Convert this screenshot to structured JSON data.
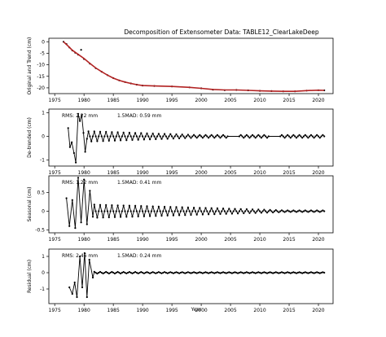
{
  "chart_data": {
    "title": "Decomposition of Extensometer Data: TABLE12_ClearLakeDeep",
    "xlabel": "Year",
    "xlim": [
      1974,
      2022.5
    ],
    "xticks": [
      1975,
      1980,
      1985,
      1990,
      1995,
      2000,
      2005,
      2010,
      2015,
      2020
    ],
    "panels": [
      {
        "type": "line",
        "ylabel": "Original and Trend (cm)",
        "ylim": [
          -22.5,
          1.5
        ],
        "yticks": [
          0,
          -5,
          -10,
          -15,
          -20
        ],
        "note_rms": "",
        "note_mad": "",
        "series": [
          {
            "color": "#000000",
            "style": "points",
            "x": [
              1976.5,
              1977,
              1977.5,
              1978,
              1978.5,
              1979,
              1979.5,
              1980,
              1981,
              1982,
              1983,
              1984,
              1985,
              1986,
              1987,
              1988,
              1989,
              1990,
              1992,
              1995,
              1998,
              2000,
              2002,
              2004,
              2006,
              2008,
              2010,
              2012,
              2014,
              2016,
              2018,
              2020,
              2021
            ],
            "y": [
              0,
              -1,
              -2.5,
              -3.8,
              -4.8,
              -5.6,
              -3.5,
              -7.5,
              -9.5,
              -11.5,
              -13,
              -14.5,
              -15.8,
              -16.8,
              -17.5,
              -18.1,
              -18.6,
              -19,
              -19.2,
              -19.4,
              -19.8,
              -20.2,
              -20.8,
              -21,
              -20.9,
              -21.1,
              -21.3,
              -21.4,
              -21.5,
              -21.5,
              -21.2,
              -21,
              -21.1
            ]
          },
          {
            "color": "#b22222",
            "style": "line",
            "x": [
              1976.5,
              1977,
              1978,
              1979,
              1980,
              1981,
              1982,
              1983,
              1984,
              1985,
              1986,
              1987,
              1988,
              1989,
              1990,
              1992,
              1995,
              1998,
              2000,
              2002,
              2004,
              2006,
              2008,
              2010,
              2012,
              2014,
              2016,
              2018,
              2020,
              2021
            ],
            "y": [
              0,
              -1.2,
              -3.7,
              -5.5,
              -7.3,
              -9.4,
              -11.4,
              -13,
              -14.5,
              -15.8,
              -16.8,
              -17.5,
              -18.1,
              -18.6,
              -19,
              -19.2,
              -19.4,
              -19.8,
              -20.2,
              -20.7,
              -20.9,
              -20.9,
              -21.1,
              -21.3,
              -21.4,
              -21.5,
              -21.5,
              -21.2,
              -21,
              -21.1
            ]
          }
        ]
      },
      {
        "type": "line",
        "ylabel": "De-trended (cm)",
        "ylim": [
          -1.25,
          1.15
        ],
        "yticks": [
          1,
          0,
          -1
        ],
        "note_rms": "RMS: 2.22 mm",
        "note_mad": "1.5MAD: 0.59 mm",
        "start": 1976.5,
        "end": 2021,
        "step": 0.25,
        "period": 1,
        "amp": [
          0.25,
          0.06
        ],
        "amp_decay": 1999,
        "gaps": [
          [
            2004.5,
            2006.5
          ],
          [
            2011.5,
            2013.5
          ]
        ],
        "excursions": {
          "x": [
            1977.3,
            1977.6,
            1977.9,
            1978.3,
            1978.6,
            1979.0,
            1979.3,
            1979.6,
            1979.9,
            1980.2,
            1980.5
          ],
          "y": [
            0.35,
            -0.45,
            -0.25,
            -0.7,
            -1.1,
            0.95,
            0.65,
            0.9,
            0.15,
            -0.65,
            -0.1
          ]
        }
      },
      {
        "type": "line",
        "ylabel": "Seasonal (cm)",
        "ylim": [
          -0.58,
          0.95
        ],
        "yticks": [
          0.5,
          0,
          -0.5
        ],
        "note_rms": "RMS: 1.22 mm",
        "note_mad": "1.5MAD: 0.41 mm",
        "start": 1976.5,
        "end": 2021,
        "step": 0.25,
        "period": 1,
        "amp": [
          0.2,
          0.02
        ],
        "amp_decay": 2015,
        "gaps": [],
        "excursions": {
          "x": [
            1977.0,
            1977.5,
            1978.0,
            1978.5,
            1979.0,
            1979.5,
            1980.0,
            1980.5,
            1981.0,
            1981.5
          ],
          "y": [
            0.35,
            -0.4,
            0.3,
            -0.45,
            0.9,
            -0.3,
            0.85,
            -0.35,
            0.55,
            -0.15
          ]
        }
      },
      {
        "type": "line",
        "ylabel": "Residual (cm)",
        "ylim": [
          -1.9,
          1.45
        ],
        "yticks": [
          1,
          0,
          -1
        ],
        "note_rms": "RMS: 2.46 mm",
        "note_mad": "1.5MAD: 0.24 mm",
        "start": 1976.5,
        "end": 2021,
        "step": 0.25,
        "period": 1,
        "amp": [
          0.06,
          0.03
        ],
        "amp_decay": 2000,
        "gaps": [],
        "excursions": {
          "x": [
            1977.5,
            1978.0,
            1978.4,
            1978.8,
            1979.3,
            1979.7,
            1980.1,
            1980.5,
            1980.9,
            1981.5
          ],
          "y": [
            -0.9,
            -1.3,
            -0.6,
            -1.5,
            1.0,
            -0.9,
            1.2,
            -1.5,
            0.8,
            -0.3
          ]
        }
      }
    ]
  }
}
